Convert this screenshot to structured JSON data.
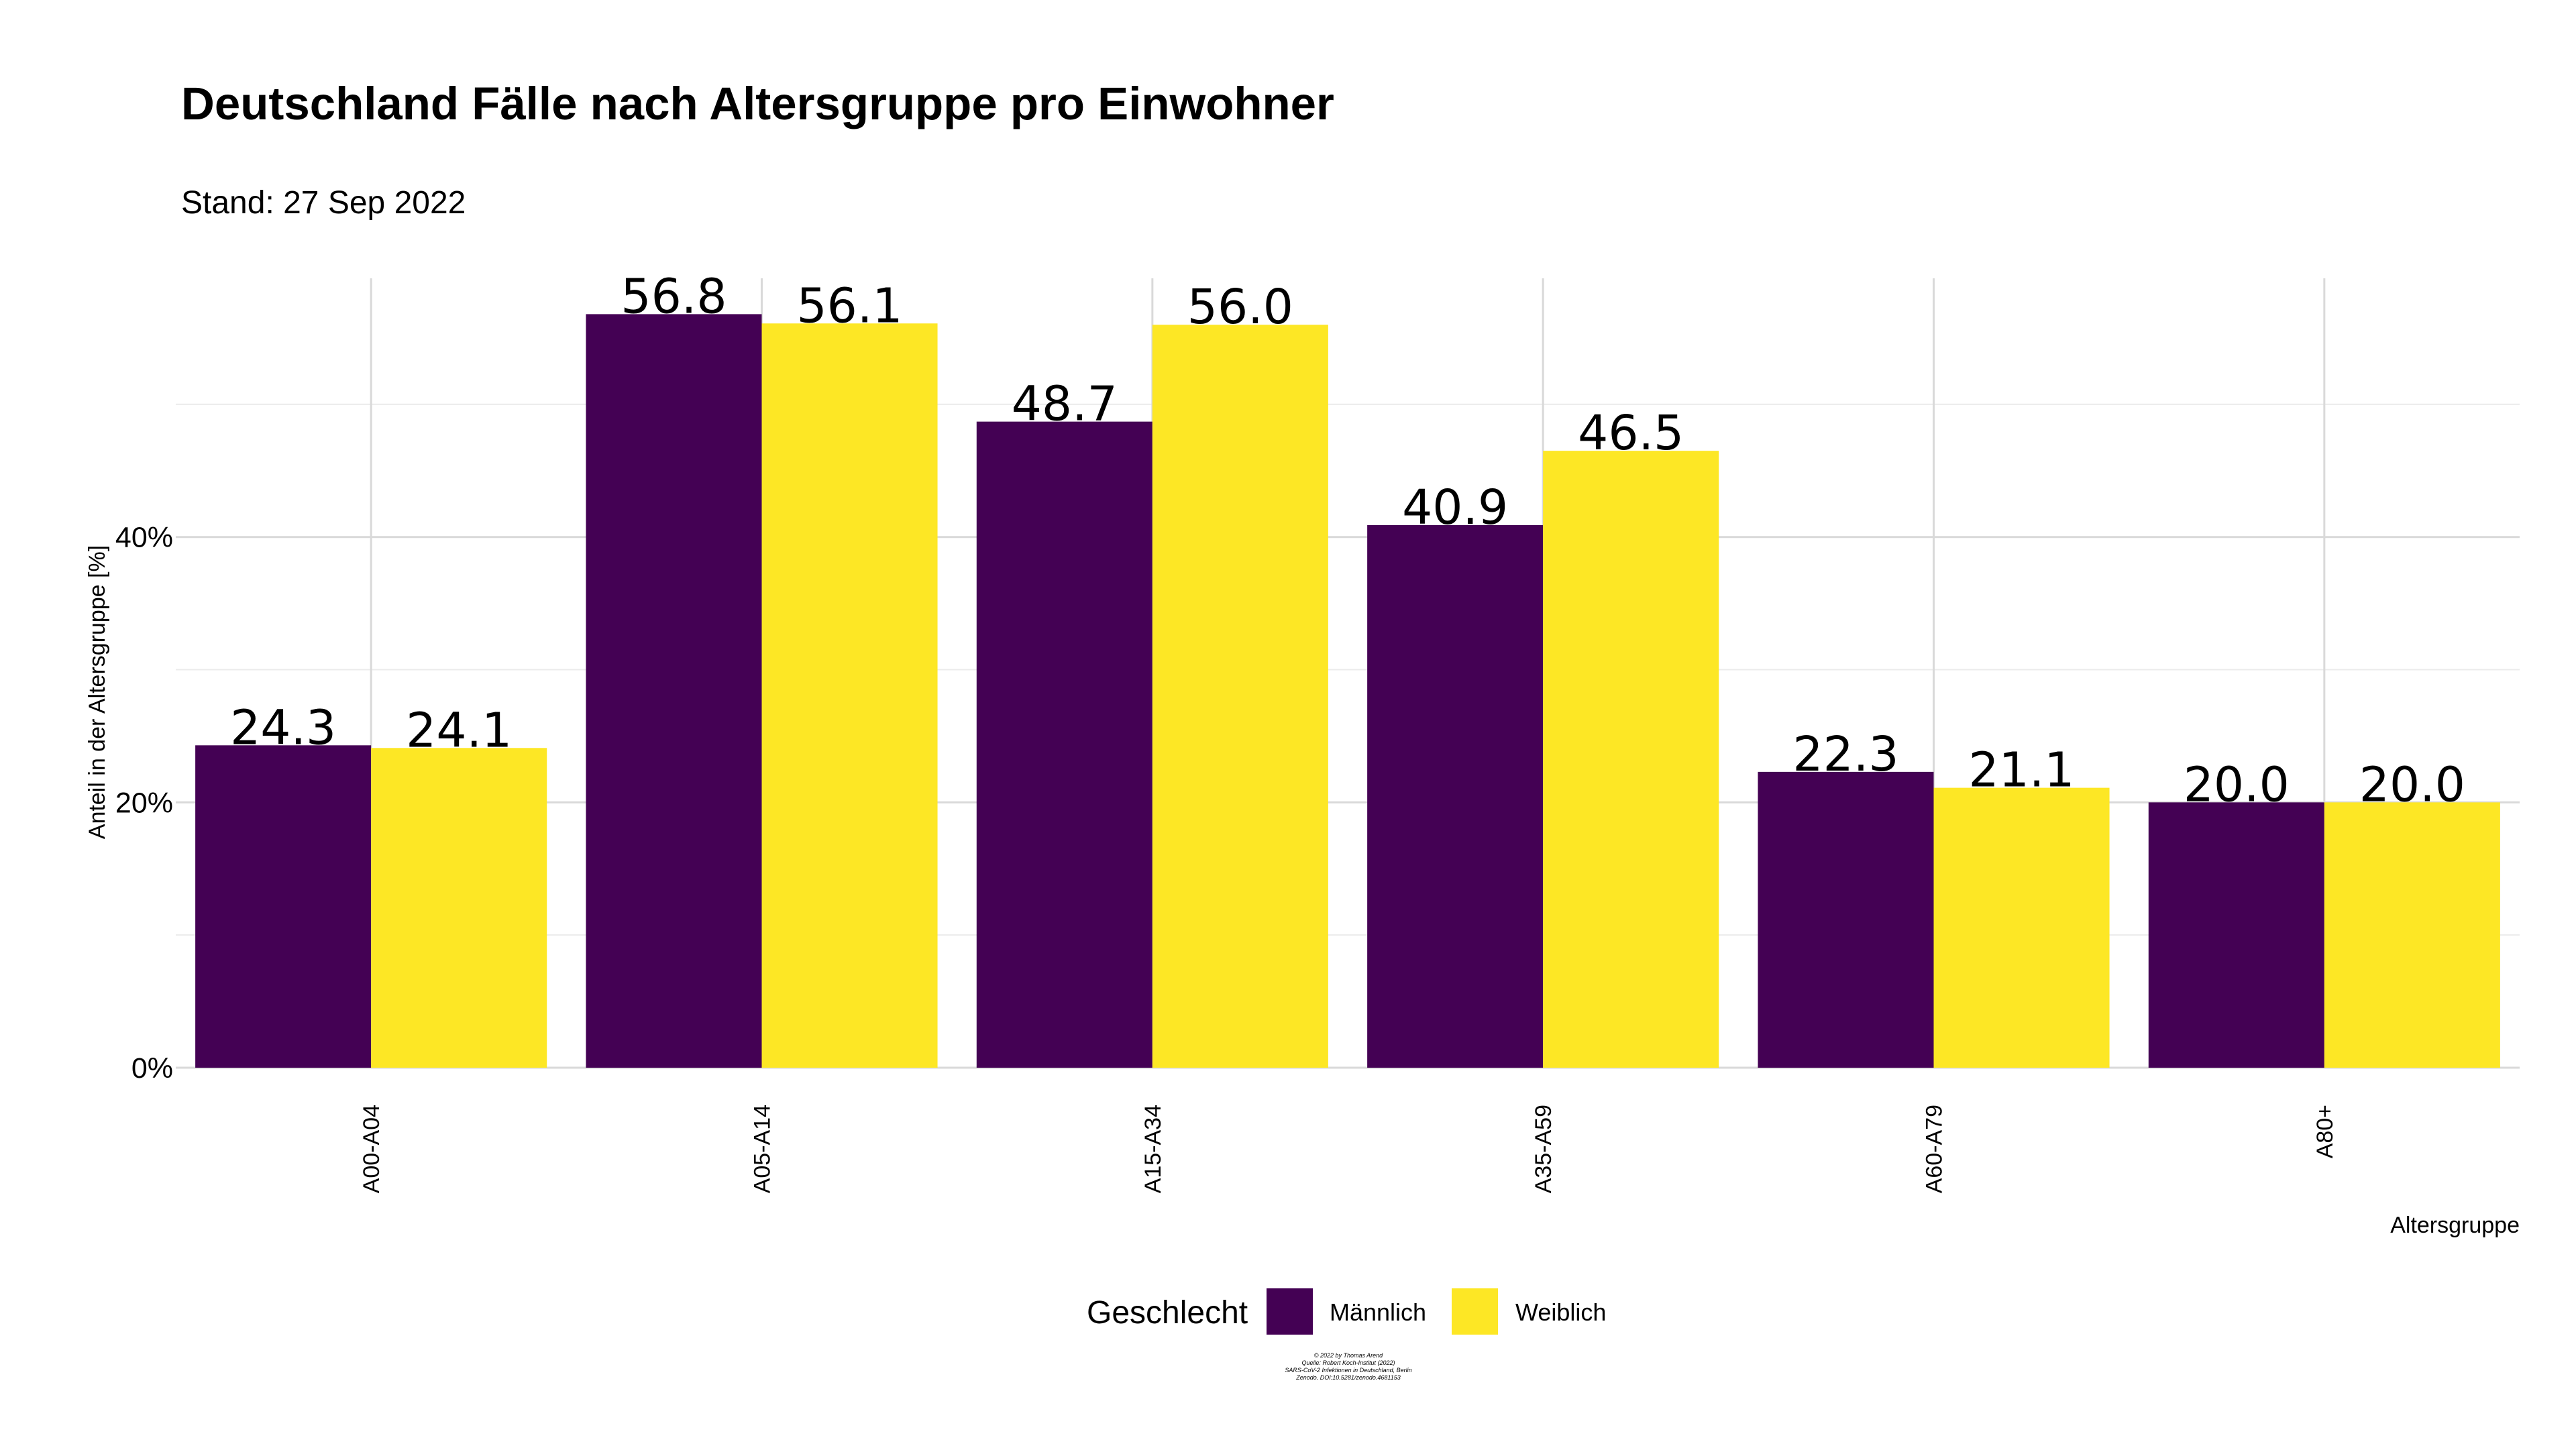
{
  "chart_data": {
    "type": "bar",
    "title": "Deutschland Fälle nach Altersgruppe pro Einwohner",
    "subtitle": "Stand: 27 Sep 2022",
    "xlabel": "Altersgruppe",
    "ylabel": "Anteil in der Altersgruppe [%]",
    "categories": [
      "A00-A04",
      "A05-A14",
      "A15-A34",
      "A35-A59",
      "A60-A79",
      "A80+"
    ],
    "series": [
      {
        "name": "Männlich",
        "color": "#440154",
        "values": [
          24.3,
          56.8,
          48.7,
          40.9,
          22.3,
          20.0
        ],
        "labels": [
          "24.3",
          "56.8",
          "48.7",
          "40.9",
          "22.3",
          "20.0"
        ]
      },
      {
        "name": "Weiblich",
        "color": "#FDE725",
        "values": [
          24.1,
          56.1,
          56.0,
          46.5,
          21.1,
          20.0
        ],
        "labels": [
          "24.1",
          "56.1",
          "56.0",
          "46.5",
          "21.1",
          "20.0"
        ]
      }
    ],
    "ylim": [
      0,
      59.5
    ],
    "y_ticks": [
      0,
      20,
      40
    ],
    "y_tick_labels": [
      "0%",
      "20%",
      "40%"
    ],
    "y_minor_ticks": [
      10,
      30,
      50
    ],
    "grid": true,
    "legend": {
      "title": "Geschlecht",
      "position": "bottom"
    },
    "caption": [
      "© 2022 by Thomas Arend",
      "Quelle: Robert Koch-Institut (2022)",
      "SARS-CoV-2 Infektionen in Deutschland, Berlin",
      "Zenodo. DOI:10.5281/zenodo.4681153"
    ]
  }
}
